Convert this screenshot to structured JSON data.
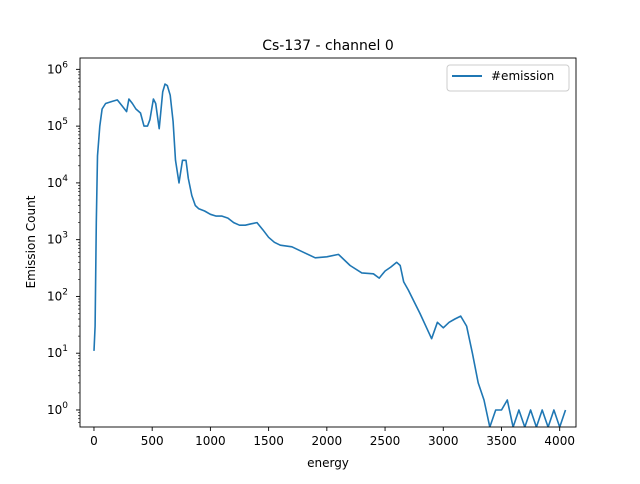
{
  "chart_data": {
    "type": "line",
    "title": "Cs-137 - channel 0",
    "xlabel": "energy",
    "ylabel": "Emission Count",
    "xlim": [
      -120,
      4140
    ],
    "ylim_log10": [
      -0.3,
      6.2
    ],
    "yscale": "log",
    "grid": false,
    "legend_position": "top-right",
    "x_ticks": [
      0,
      500,
      1000,
      1500,
      2000,
      2500,
      3000,
      3500,
      4000
    ],
    "x_tick_labels": [
      "0",
      "500",
      "1000",
      "1500",
      "2000",
      "2500",
      "3000",
      "3500",
      "4000"
    ],
    "y_ticks_exp": [
      0,
      1,
      2,
      3,
      4,
      5,
      6
    ],
    "y_tick_labels": [
      {
        "base": "10",
        "exp": "0"
      },
      {
        "base": "10",
        "exp": "1"
      },
      {
        "base": "10",
        "exp": "2"
      },
      {
        "base": "10",
        "exp": "3"
      },
      {
        "base": "10",
        "exp": "4"
      },
      {
        "base": "10",
        "exp": "5"
      },
      {
        "base": "10",
        "exp": "6"
      }
    ],
    "series": [
      {
        "name": "#emission",
        "color": "#1f77b4",
        "x": [
          0,
          10,
          20,
          30,
          50,
          70,
          100,
          150,
          200,
          240,
          280,
          300,
          330,
          360,
          400,
          430,
          460,
          480,
          510,
          530,
          560,
          590,
          610,
          630,
          655,
          680,
          700,
          730,
          760,
          790,
          810,
          840,
          870,
          900,
          950,
          1000,
          1050,
          1100,
          1150,
          1200,
          1250,
          1300,
          1350,
          1400,
          1450,
          1500,
          1550,
          1600,
          1700,
          1800,
          1900,
          2000,
          2100,
          2200,
          2300,
          2400,
          2450,
          2500,
          2550,
          2600,
          2630,
          2660,
          2700,
          2750,
          2800,
          2850,
          2900,
          2950,
          3000,
          3050,
          3100,
          3150,
          3200,
          3250,
          3300,
          3350,
          3400,
          3450,
          3500,
          3550,
          3600,
          3650,
          3700,
          3750,
          3800,
          3850,
          3900,
          3950,
          4000,
          4050
        ],
        "y": [
          11,
          30,
          2000,
          30000,
          100000,
          200000,
          250000,
          270000,
          290000,
          230000,
          180000,
          300000,
          250000,
          200000,
          170000,
          100000,
          100000,
          130000,
          300000,
          250000,
          90000,
          400000,
          550000,
          520000,
          350000,
          120000,
          25000,
          10000,
          25000,
          25000,
          12000,
          6000,
          4000,
          3500,
          3200,
          2800,
          2600,
          2600,
          2400,
          2000,
          1800,
          1800,
          1900,
          2000,
          1500,
          1100,
          900,
          800,
          750,
          600,
          480,
          500,
          550,
          350,
          260,
          250,
          210,
          280,
          330,
          400,
          350,
          180,
          130,
          80,
          50,
          30,
          18,
          35,
          28,
          35,
          40,
          45,
          30,
          10,
          3,
          1.5,
          0.5,
          1,
          1,
          1.5,
          0.5,
          1,
          0.5,
          1,
          0.5,
          1,
          0.5,
          1,
          0.5,
          1
        ]
      }
    ]
  }
}
